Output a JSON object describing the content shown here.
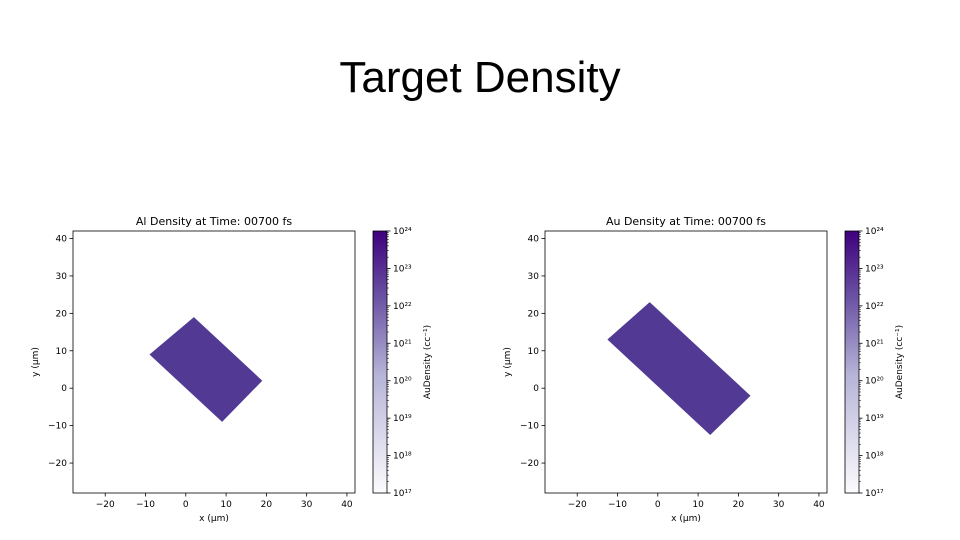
{
  "slide": {
    "title": "Target Density"
  },
  "chart_data": [
    {
      "type": "heatmap",
      "title": "Al Density at Time: 00700 fs",
      "xlabel": "x (μm)",
      "ylabel": "y (μm)",
      "xlim": [
        -28,
        42
      ],
      "ylim": [
        -28,
        42
      ],
      "x_ticks": [
        -20,
        -10,
        0,
        10,
        20,
        30,
        40
      ],
      "y_ticks": [
        -20,
        -10,
        0,
        10,
        20,
        30,
        40
      ],
      "region": {
        "shape": "rotated-rectangle",
        "corners": [
          [
            -9,
            9
          ],
          [
            2,
            19
          ],
          [
            19,
            2
          ],
          [
            9,
            -9
          ]
        ],
        "value": 1e+24,
        "color": "#523a94"
      },
      "colorbar": {
        "label": "AuDensity (cc⁻¹)",
        "scale": "log",
        "range": [
          1e+17,
          1e+24
        ],
        "tick_labels": [
          "10²⁴",
          "10²³",
          "10²²",
          "10²¹",
          "10²⁰",
          "10¹⁹",
          "10¹⁸",
          "10¹⁷"
        ],
        "color_low": "#fcfbfd",
        "color_high": "#3f007d"
      },
      "grid": false
    },
    {
      "type": "heatmap",
      "title": "Au Density at Time: 00700 fs",
      "xlabel": "x (μm)",
      "ylabel": "y (μm)",
      "xlim": [
        -28,
        42
      ],
      "ylim": [
        -28,
        42
      ],
      "x_ticks": [
        -20,
        -10,
        0,
        10,
        20,
        30,
        40
      ],
      "y_ticks": [
        -20,
        -10,
        0,
        10,
        20,
        30,
        40
      ],
      "region": {
        "shape": "rotated-rectangle",
        "corners": [
          [
            -12.5,
            13
          ],
          [
            -2,
            23
          ],
          [
            23,
            -2
          ],
          [
            13,
            -12.5
          ]
        ],
        "value": 1e+24,
        "color": "#523a94"
      },
      "colorbar": {
        "label": "AuDensity (cc⁻¹)",
        "scale": "log",
        "range": [
          1e+17,
          1e+24
        ],
        "tick_labels": [
          "10²⁴",
          "10²³",
          "10²²",
          "10²¹",
          "10²⁰",
          "10¹⁹",
          "10¹⁸",
          "10¹⁷"
        ],
        "color_low": "#fcfbfd",
        "color_high": "#3f007d"
      },
      "grid": false
    }
  ]
}
